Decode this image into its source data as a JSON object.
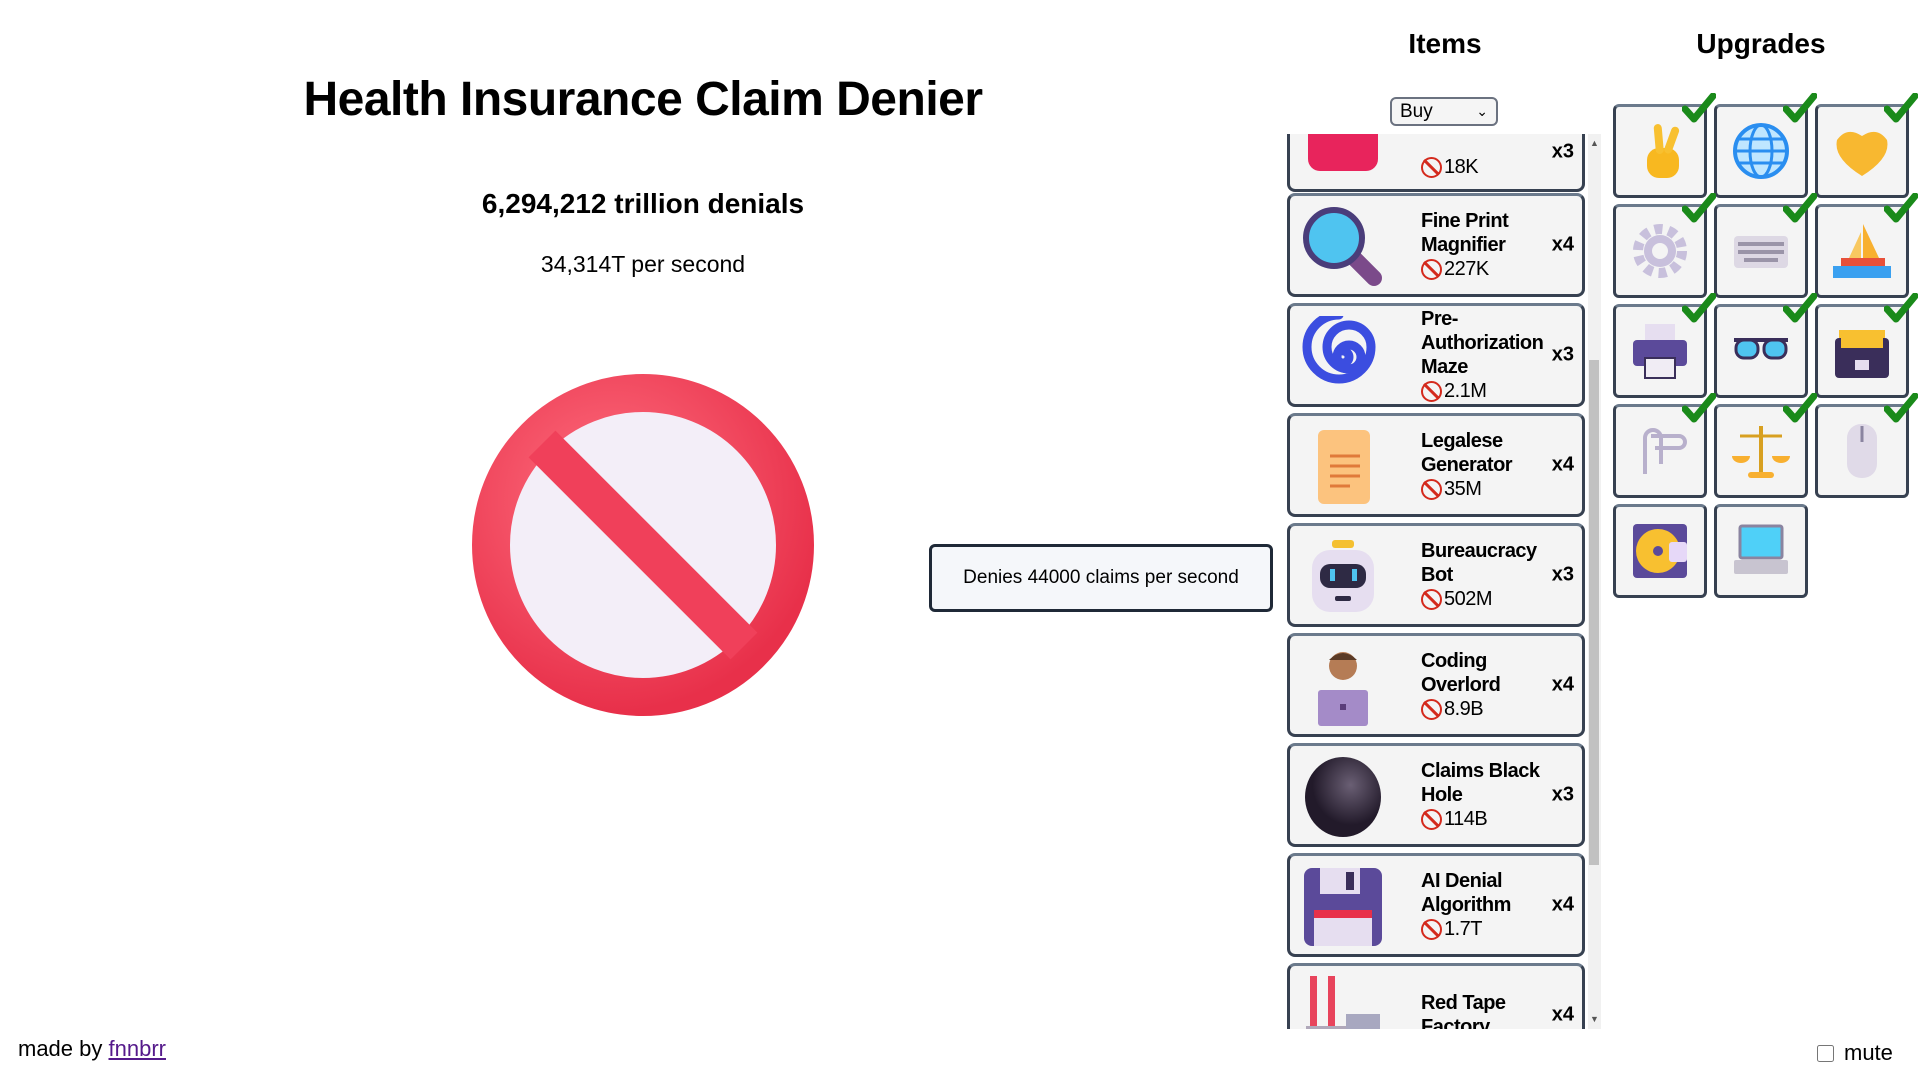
{
  "title": "Health Insurance Claim Denier",
  "denials": "6,294,212 trillion denials",
  "per_second": "34,314T per second",
  "tooltip": "Denies 44000 claims per second",
  "items_header": "Items",
  "upgrades_header": "Upgrades",
  "buy_select": {
    "value": "Buy"
  },
  "items": [
    {
      "name": "",
      "price": "18K",
      "qty": "x3",
      "icon": "telephone-icon"
    },
    {
      "name": "Fine Print Magnifier",
      "price": "227K",
      "qty": "x4",
      "icon": "magnifier-icon"
    },
    {
      "name": "Pre-Authorization Maze",
      "price": "2.1M",
      "qty": "x3",
      "icon": "spiral-icon"
    },
    {
      "name": "Legalese Generator",
      "price": "35M",
      "qty": "x4",
      "icon": "scroll-icon"
    },
    {
      "name": "Bureaucracy Bot",
      "price": "502M",
      "qty": "x3",
      "icon": "robot-icon"
    },
    {
      "name": "Coding Overlord",
      "price": "8.9B",
      "qty": "x4",
      "icon": "technologist-icon"
    },
    {
      "name": "Claims Black Hole",
      "price": "114B",
      "qty": "x3",
      "icon": "black-hole-icon"
    },
    {
      "name": "AI Denial Algorithm",
      "price": "1.7T",
      "qty": "x4",
      "icon": "floppy-disk-icon"
    },
    {
      "name": "Red Tape Factory",
      "price": "",
      "qty": "x4",
      "icon": "factory-icon"
    }
  ],
  "upgrades": [
    {
      "icon": "victory-hand-icon",
      "purchased": true
    },
    {
      "icon": "globe-icon",
      "purchased": true
    },
    {
      "icon": "handshake-icon",
      "purchased": true
    },
    {
      "icon": "gear-icon",
      "purchased": true
    },
    {
      "icon": "keyboard-icon",
      "purchased": true
    },
    {
      "icon": "sailboat-icon",
      "purchased": true
    },
    {
      "icon": "printer-icon",
      "purchased": true
    },
    {
      "icon": "glasses-icon",
      "purchased": true
    },
    {
      "icon": "card-file-box-icon",
      "purchased": true
    },
    {
      "icon": "paperclips-icon",
      "purchased": true
    },
    {
      "icon": "balance-scale-icon",
      "purchased": true
    },
    {
      "icon": "computer-mouse-icon",
      "purchased": true
    },
    {
      "icon": "dvd-icon",
      "purchased": false
    },
    {
      "icon": "laptop-icon",
      "purchased": false
    }
  ],
  "footer": {
    "made_by": "made by ",
    "author": "fnnbrr",
    "mute_label": "mute",
    "mute_checked": false
  },
  "colors": {
    "accent_red": "#f0405a",
    "check_green": "#1a8a1a",
    "border": "#374151"
  }
}
